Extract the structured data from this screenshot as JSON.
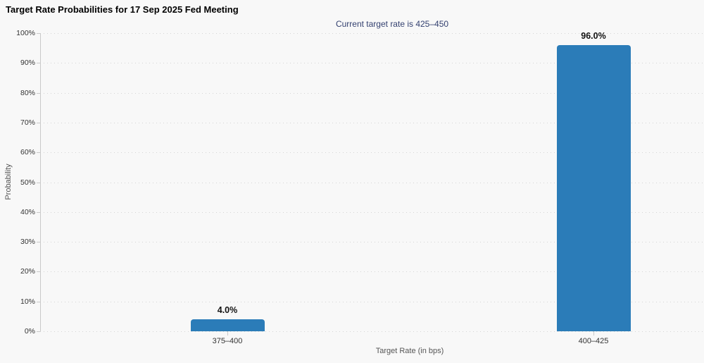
{
  "chart_data": {
    "type": "bar",
    "title": "Target Rate Probabilities for 17 Sep 2025 Fed Meeting",
    "subtitle": "Current target rate is 425–450",
    "categories": [
      "375–400",
      "400–425"
    ],
    "values": [
      4.0,
      96.0
    ],
    "value_labels": [
      "4.0%",
      "96.0%"
    ],
    "xlabel": "Target Rate (in bps)",
    "ylabel": "Probability",
    "ylim": [
      0,
      100
    ],
    "ytick_step": 10,
    "ytick_suffix": "%",
    "grid": "horizontal-dotted",
    "legend": "none",
    "bar_color": "#2b7cb8",
    "colors": {
      "background": "#f8f8f8",
      "subtitle_text": "#344170",
      "axis_line": "#c9c9c9",
      "gridline": "#d5d5d5",
      "tick_label": "#333333",
      "axis_title": "#555555",
      "value_label": "#111111"
    }
  }
}
